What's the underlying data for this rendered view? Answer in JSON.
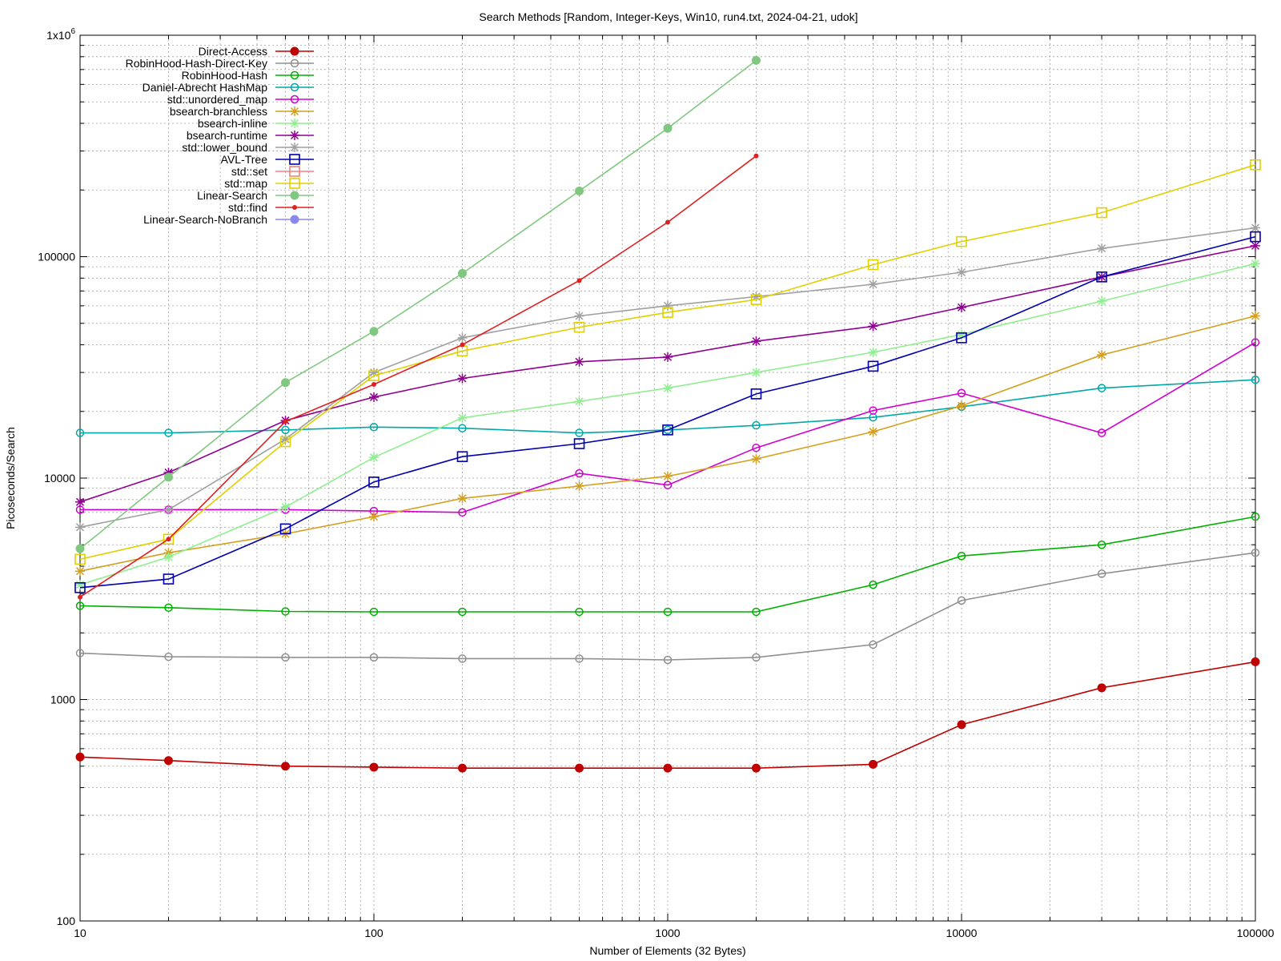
{
  "chart_data": {
    "type": "line",
    "title": "Search Methods [Random, Integer-Keys, Win10, run4.txt, 2024-04-21, udok]",
    "xlabel": "Number of Elements (32 Bytes)",
    "ylabel": "Picoseconds/Search",
    "xscale": "log",
    "yscale": "log",
    "xlim": [
      10,
      100000
    ],
    "ylim": [
      100,
      1000000
    ],
    "grid": true,
    "legend_position": "top-left",
    "x_ticks": [
      "10",
      "100",
      "1000",
      "10000",
      "100000"
    ],
    "y_ticks": [
      "100",
      "1000",
      "10000",
      "100000"
    ],
    "y_top_tick": {
      "base": "1x10",
      "exp": "6"
    },
    "series": [
      {
        "name": "Direct-Access",
        "color": "#c00000",
        "marker": "filled-circle",
        "x": [
          10,
          20,
          50,
          100,
          200,
          500,
          1000,
          2000,
          5000,
          10000,
          30000,
          100000
        ],
        "y": [
          550,
          530,
          500,
          495,
          490,
          490,
          490,
          490,
          510,
          770,
          1130,
          1480
        ]
      },
      {
        "name": "RobinHood-Hash-Direct-Key",
        "color": "#909090",
        "marker": "open-circle",
        "x": [
          10,
          20,
          50,
          100,
          200,
          500,
          1000,
          2000,
          5000,
          10000,
          30000,
          100000
        ],
        "y": [
          1620,
          1560,
          1550,
          1550,
          1530,
          1530,
          1510,
          1550,
          1770,
          2800,
          3700,
          4600
        ]
      },
      {
        "name": "RobinHood-Hash",
        "color": "#00b000",
        "marker": "open-circle",
        "x": [
          10,
          20,
          50,
          100,
          200,
          500,
          1000,
          2000,
          5000,
          10000,
          30000,
          100000
        ],
        "y": [
          2650,
          2600,
          2500,
          2490,
          2490,
          2490,
          2490,
          2490,
          3300,
          4450,
          5000,
          6700
        ]
      },
      {
        "name": "Daniel-Abrecht HashMap",
        "color": "#00a8a8",
        "marker": "open-circle",
        "x": [
          10,
          20,
          50,
          100,
          200,
          500,
          1000,
          2000,
          5000,
          10000,
          30000,
          100000
        ],
        "y": [
          16000,
          16000,
          16500,
          17000,
          16800,
          16000,
          16500,
          17300,
          18800,
          21000,
          25500,
          27800
        ]
      },
      {
        "name": "std::unordered_map",
        "color": "#d000d0",
        "marker": "open-circle",
        "x": [
          10,
          20,
          50,
          100,
          200,
          500,
          1000,
          2000,
          5000,
          10000,
          30000,
          100000
        ],
        "y": [
          7200,
          7200,
          7200,
          7100,
          7000,
          10500,
          9300,
          13700,
          20200,
          24200,
          16000,
          41000
        ]
      },
      {
        "name": "bsearch-branchless",
        "color": "#d4a020",
        "marker": "star",
        "x": [
          10,
          20,
          50,
          100,
          200,
          500,
          1000,
          2000,
          5000,
          10000,
          30000,
          100000
        ],
        "y": [
          3800,
          4600,
          5600,
          6700,
          8100,
          9200,
          10200,
          12200,
          16200,
          21200,
          36000,
          54000
        ]
      },
      {
        "name": "bsearch-inline",
        "color": "#90ee90",
        "marker": "star",
        "x": [
          10,
          20,
          50,
          100,
          200,
          500,
          1000,
          2000,
          5000,
          10000,
          30000,
          100000
        ],
        "y": [
          3300,
          4400,
          7400,
          12400,
          18700,
          22200,
          25500,
          30000,
          37000,
          44500,
          63000,
          93000
        ]
      },
      {
        "name": "bsearch-runtime",
        "color": "#900090",
        "marker": "star",
        "x": [
          10,
          20,
          50,
          100,
          200,
          500,
          1000,
          2000,
          5000,
          10000,
          30000,
          100000
        ],
        "y": [
          7800,
          10600,
          18200,
          23200,
          28200,
          33500,
          35200,
          41500,
          48500,
          59000,
          81000,
          112000
        ]
      },
      {
        "name": "std::lower_bound",
        "color": "#a0a0a0",
        "marker": "star",
        "x": [
          10,
          20,
          50,
          100,
          200,
          500,
          1000,
          2000,
          5000,
          10000,
          30000,
          100000
        ],
        "y": [
          6000,
          7200,
          15000,
          30000,
          43000,
          54000,
          60000,
          66000,
          75000,
          85000,
          109000,
          135000
        ]
      },
      {
        "name": "AVL-Tree",
        "color": "#0000b0",
        "marker": "open-square",
        "x": [
          10,
          20,
          50,
          100,
          200,
          500,
          1000,
          2000,
          5000,
          10000,
          30000,
          100000
        ],
        "y": [
          3200,
          3500,
          5900,
          9600,
          12500,
          14300,
          16500,
          24000,
          32000,
          43000,
          81000,
          123000
        ]
      },
      {
        "name": "std::set",
        "color": "#f08080",
        "marker": "open-square",
        "x": [],
        "y": []
      },
      {
        "name": "std::map",
        "color": "#e0d000",
        "marker": "open-square",
        "x": [
          10,
          20,
          50,
          100,
          200,
          500,
          1000,
          2000,
          5000,
          10000,
          30000,
          100000
        ],
        "y": [
          4300,
          5300,
          14600,
          29000,
          37500,
          48000,
          56000,
          64000,
          92000,
          117000,
          158000,
          260000
        ]
      },
      {
        "name": "Linear-Search",
        "color": "#80c880",
        "marker": "filled-circle",
        "x": [
          10,
          20,
          50,
          100,
          200,
          500,
          1000,
          2000
        ],
        "y": [
          4800,
          10100,
          27000,
          46000,
          84000,
          198000,
          380000,
          770000
        ]
      },
      {
        "name": "std::find",
        "color": "#e02020",
        "marker": "small-dot",
        "x": [
          10,
          20,
          50,
          100,
          200,
          500,
          1000,
          2000
        ],
        "y": [
          2900,
          5300,
          18000,
          26500,
          40000,
          78000,
          143000,
          285000
        ]
      },
      {
        "name": "Linear-Search-NoBranch",
        "color": "#8888ee",
        "marker": "filled-circle",
        "x": [],
        "y": []
      }
    ]
  }
}
